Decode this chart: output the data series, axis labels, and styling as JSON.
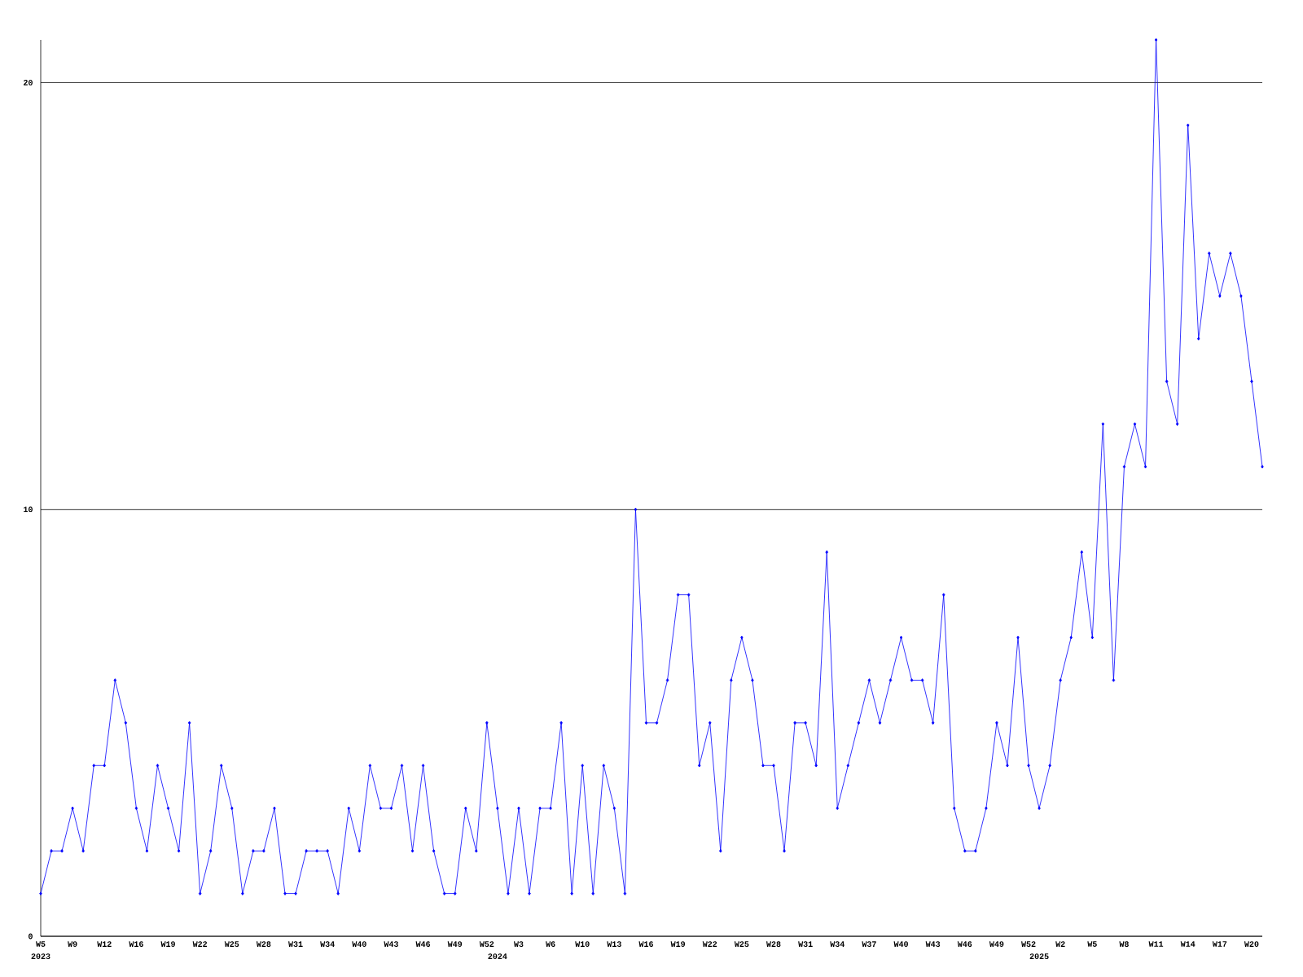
{
  "chart_data": {
    "type": "line",
    "categories": [
      "W5",
      null,
      null,
      "W9",
      null,
      null,
      "W12",
      null,
      null,
      "W16",
      null,
      null,
      "W19",
      null,
      null,
      "W22",
      null,
      null,
      "W25",
      null,
      null,
      "W28",
      null,
      null,
      "W31",
      null,
      null,
      "W34",
      null,
      null,
      "W40",
      null,
      null,
      "W43",
      null,
      null,
      "W46",
      null,
      null,
      "W49",
      null,
      null,
      "W52",
      "2024",
      null,
      "W3",
      null,
      null,
      "W6",
      null,
      null,
      "W10",
      null,
      null,
      "W13",
      null,
      null,
      "W16",
      null,
      null,
      "W19",
      null,
      null,
      "W22",
      null,
      null,
      "W25",
      null,
      null,
      "W28",
      null,
      null,
      "W31",
      null,
      null,
      "W34",
      null,
      null,
      "W37",
      null,
      null,
      "W40",
      null,
      null,
      "W43",
      null,
      null,
      "W46",
      null,
      null,
      "W49",
      null,
      null,
      "W52",
      "2025",
      null,
      "W2",
      null,
      null,
      "W5",
      null,
      null,
      "W8",
      null,
      null,
      "W11",
      null,
      null,
      "W14",
      null,
      null,
      "W17",
      null,
      null,
      "W20",
      null
    ],
    "series": [
      {
        "color": "#0000ff",
        "values": [
          1,
          2,
          2,
          3,
          2,
          4,
          4,
          6,
          5,
          3,
          2,
          4,
          3,
          2,
          5,
          1,
          2,
          4,
          3,
          1,
          2,
          2,
          3,
          1,
          1,
          2,
          2,
          2,
          1,
          3,
          2,
          4,
          3,
          3,
          4,
          2,
          4,
          2,
          1,
          1,
          3,
          2,
          5,
          3,
          1,
          3,
          1,
          3,
          3,
          5,
          1,
          4,
          1,
          4,
          3,
          1,
          10,
          5,
          5,
          6,
          8,
          8,
          4,
          5,
          2,
          6,
          7,
          6,
          4,
          4,
          2,
          5,
          5,
          4,
          9,
          3,
          4,
          5,
          6,
          5,
          6,
          7,
          6,
          6,
          5,
          8,
          3,
          2,
          2,
          3,
          5,
          4,
          7,
          4,
          3,
          4,
          6,
          7,
          9,
          7,
          12,
          6,
          11,
          12,
          11,
          21,
          13,
          12,
          19,
          14,
          16,
          15,
          16,
          15,
          13,
          11
        ]
      }
    ],
    "annotations": [
      "2023"
    ],
    "ylim": [
      0,
      21
    ],
    "yticks": [
      0,
      10,
      20
    ],
    "grid": "y",
    "marker": "diamond",
    "line_style": "solid"
  }
}
